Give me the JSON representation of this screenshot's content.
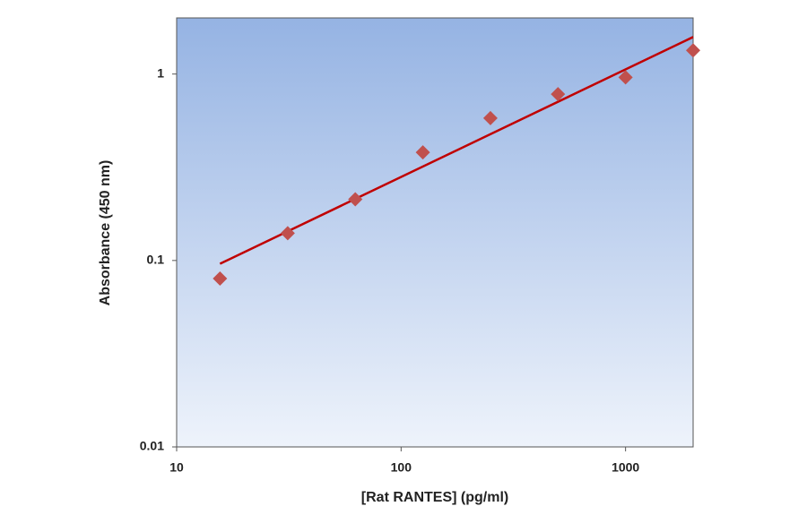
{
  "chart_data": {
    "type": "scatter",
    "xlabel": "[Rat RANTES] (pg/ml)",
    "ylabel": "Absorbance (450 nm)",
    "x": [
      15.6,
      31.25,
      62.5,
      125,
      250,
      500,
      1000,
      2000
    ],
    "values": [
      0.08,
      0.14,
      0.213,
      0.38,
      0.58,
      0.78,
      0.96,
      1.34
    ],
    "color": "#c0504d",
    "trendline": {
      "x": [
        15.6,
        2000
      ],
      "values": [
        0.096,
        1.58
      ],
      "color": "#c00000"
    },
    "xscale": "log",
    "yscale": "log",
    "xlim": [
      10,
      2000
    ],
    "ylim": [
      0.01,
      2
    ],
    "xticks": [
      10,
      100,
      1000
    ],
    "yticks": [
      0.01,
      0.1,
      1
    ]
  }
}
